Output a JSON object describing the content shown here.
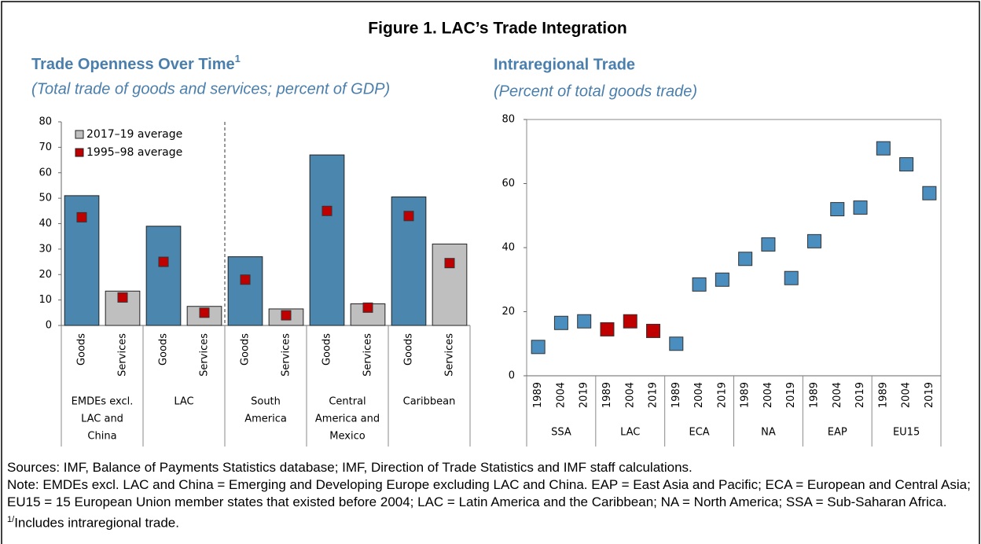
{
  "figure_title": "Figure 1. LAC’s Trade Integration",
  "chart_data": [
    {
      "type": "bar",
      "title": "Trade Openness Over Time",
      "title_superscript": "1",
      "subtitle": "(Total trade of goods and services; percent of GDP)",
      "categories": [
        "Goods",
        "Services",
        "Goods",
        "Services",
        "Goods",
        "Services",
        "Goods",
        "Services",
        "Goods",
        "Services"
      ],
      "groups": [
        {
          "label": [
            "EMDEs excl.",
            "LAC and",
            "China"
          ],
          "span": 2
        },
        {
          "label": [
            "LAC"
          ],
          "span": 2
        },
        {
          "label": [
            "South",
            "America"
          ],
          "span": 2
        },
        {
          "label": [
            "Central",
            "America and",
            "Mexico"
          ],
          "span": 2
        },
        {
          "label": [
            "Caribbean"
          ],
          "span": 2
        }
      ],
      "series": [
        {
          "name": "2017–19 average",
          "type": "bar",
          "color": "#bfbfbf",
          "colors": [
            "#4a86ad",
            "#bfbfbf",
            "#4a86ad",
            "#bfbfbf",
            "#4a86ad",
            "#bfbfbf",
            "#4a86ad",
            "#bfbfbf",
            "#4a86ad",
            "#bfbfbf"
          ],
          "values": [
            51,
            13.5,
            39,
            7.5,
            27,
            6.5,
            67,
            8.5,
            50.5,
            32
          ]
        },
        {
          "name": "1995–98 average",
          "type": "marker",
          "color": "#c00000",
          "values": [
            42.5,
            11,
            25,
            5,
            18,
            4,
            45,
            7,
            43,
            24.5
          ]
        }
      ],
      "ylim": [
        0,
        80
      ],
      "yticks": [
        0,
        10,
        20,
        30,
        40,
        50,
        60,
        70,
        80
      ],
      "legend": "upper left"
    },
    {
      "type": "dot",
      "title": "Intraregional Trade",
      "subtitle": "(Percent of total goods trade)",
      "categories": [
        "1989",
        "2004",
        "2019",
        "1989",
        "2004",
        "2019",
        "1989",
        "2004",
        "2019",
        "1989",
        "2004",
        "2019",
        "1989",
        "2004",
        "2019",
        "1989",
        "2004",
        "2019"
      ],
      "groups": [
        {
          "label": [
            "SSA"
          ],
          "span": 3
        },
        {
          "label": [
            "LAC"
          ],
          "span": 3
        },
        {
          "label": [
            "ECA"
          ],
          "span": 3
        },
        {
          "label": [
            "NA"
          ],
          "span": 3
        },
        {
          "label": [
            "EAP"
          ],
          "span": 3
        },
        {
          "label": [
            "EU15"
          ],
          "span": 3
        }
      ],
      "series": [
        {
          "type": "marker",
          "colors": [
            "#4a8ebf",
            "#4a8ebf",
            "#4a8ebf",
            "#c00000",
            "#c00000",
            "#c00000",
            "#4a8ebf",
            "#4a8ebf",
            "#4a8ebf",
            "#4a8ebf",
            "#4a8ebf",
            "#4a8ebf",
            "#4a8ebf",
            "#4a8ebf",
            "#4a8ebf",
            "#4a8ebf",
            "#4a8ebf",
            "#4a8ebf"
          ],
          "values": [
            9,
            16.5,
            17,
            14.5,
            17,
            14,
            10,
            28.5,
            30,
            36.5,
            41,
            30.5,
            42,
            52,
            52.5,
            71,
            66,
            57
          ]
        }
      ],
      "ylim": [
        0,
        80
      ],
      "yticks": [
        0,
        20,
        40,
        60,
        80
      ]
    }
  ],
  "notes": {
    "sources": "Sources: IMF, Balance of Payments Statistics database; IMF, Direction of Trade Statistics and IMF staff calculations.",
    "note": "Note: EMDEs excl. LAC and China = Emerging and Developing Europe excluding LAC and China. EAP = East Asia and Pacific; ECA = European and Central Asia; EU15 = 15 European Union member states that existed before 2004; LAC = Latin America and the Caribbean; NA = North America; SSA = Sub-Saharan Africa.",
    "footnote_mark": "1/",
    "footnote": "Includes intraregional trade."
  }
}
